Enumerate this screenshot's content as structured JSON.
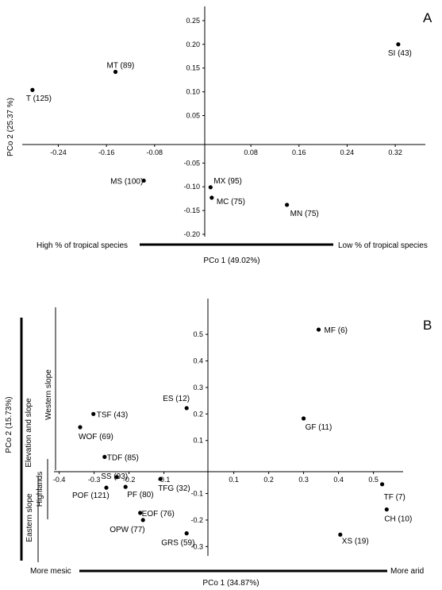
{
  "chart_data": [
    {
      "panel_label": "A",
      "type": "scatter",
      "xlabel": "PCo 1 (49.02%)",
      "ylabel": "PCo 2 (25.37 %)",
      "xlim": [
        -0.3,
        0.37
      ],
      "ylim": [
        -0.205,
        0.28
      ],
      "xticks": [
        -0.24,
        -0.16,
        -0.08,
        0.08,
        0.16,
        0.24,
        0.32
      ],
      "xtick_labels": [
        "-0.24",
        "-0.16",
        "-0.08",
        "0.08",
        "0.16",
        "0.24",
        "0.32"
      ],
      "yticks": [
        0.25,
        0.2,
        0.15,
        0.1,
        0.05,
        -0.05,
        -0.1,
        -0.15,
        -0.2
      ],
      "ytick_labels": [
        "0.25",
        "0.20",
        "0.15",
        "0.10",
        "0.05",
        "-0.05",
        "-0.10",
        "-0.15",
        "-0.20"
      ],
      "gradient": {
        "left": "High %  of tropical species",
        "right": "Low % of tropical species"
      },
      "points": [
        {
          "label": "SI (43)",
          "x": 0.325,
          "y": 0.2
        },
        {
          "label": "MT (89)",
          "x": -0.145,
          "y": 0.142
        },
        {
          "label": "T (125)",
          "x": -0.283,
          "y": 0.104
        },
        {
          "label": "MS (100)",
          "x": -0.098,
          "y": -0.087
        },
        {
          "label": "MX (95)",
          "x": 0.013,
          "y": -0.101
        },
        {
          "label": "MC (75)",
          "x": 0.015,
          "y": -0.123
        },
        {
          "label": "MN (75)",
          "x": 0.14,
          "y": -0.138
        }
      ]
    },
    {
      "panel_label": "B",
      "type": "scatter",
      "xlabel": "PCo 1 (34.87%)",
      "ylabel": "PCo 2 (15.73%)",
      "xlim": [
        -0.415,
        0.585
      ],
      "ylim": [
        -0.335,
        0.635
      ],
      "xticks": [
        -0.4,
        -0.3,
        -0.2,
        -0.1,
        0.1,
        0.2,
        0.3,
        0.4,
        0.5
      ],
      "xtick_labels": [
        "-0.4",
        "-0.3",
        "-0.2",
        "-0.1",
        "0.1",
        "0.2",
        "0.3",
        "0.4",
        "0.5"
      ],
      "yticks": [
        0.5,
        0.4,
        0.3,
        0.2,
        0.1,
        -0.1,
        -0.2,
        -0.3
      ],
      "ytick_labels": [
        "0.5",
        "0.4",
        "0.3",
        "0.2",
        "0.1",
        "-0.1",
        "-0.2",
        "-0.3"
      ],
      "gradient": {
        "left": "More mesic",
        "right": "More arid"
      },
      "side_labels": {
        "outer": "Elevation and slope",
        "western": "Western slope",
        "highlands": "Highlands",
        "eastern": "Eastern slope"
      },
      "points": [
        {
          "label": "MF (6)",
          "x": 0.343,
          "y": 0.518
        },
        {
          "label": "GF (11)",
          "x": 0.3,
          "y": 0.183
        },
        {
          "label": "ES (12)",
          "x": -0.035,
          "y": 0.222
        },
        {
          "label": "TSF (43)",
          "x": -0.302,
          "y": 0.2
        },
        {
          "label": "WOF (69)",
          "x": -0.34,
          "y": 0.15
        },
        {
          "label": "TDF (85)",
          "x": -0.27,
          "y": 0.038
        },
        {
          "label": "SS (93)",
          "x": -0.235,
          "y": -0.038
        },
        {
          "label": "POF (121)",
          "x": -0.265,
          "y": -0.078
        },
        {
          "label": "PF (80)",
          "x": -0.21,
          "y": -0.075
        },
        {
          "label": "TFG (32)",
          "x": -0.11,
          "y": -0.045
        },
        {
          "label": "EOF (76)",
          "x": -0.168,
          "y": -0.173
        },
        {
          "label": "OPW (77)",
          "x": -0.16,
          "y": -0.2
        },
        {
          "label": "GRS (59)",
          "x": -0.035,
          "y": -0.25
        },
        {
          "label": "TF (7)",
          "x": 0.525,
          "y": -0.065
        },
        {
          "label": "CH (10)",
          "x": 0.538,
          "y": -0.16
        },
        {
          "label": "XS (19)",
          "x": 0.405,
          "y": -0.255
        }
      ]
    }
  ]
}
